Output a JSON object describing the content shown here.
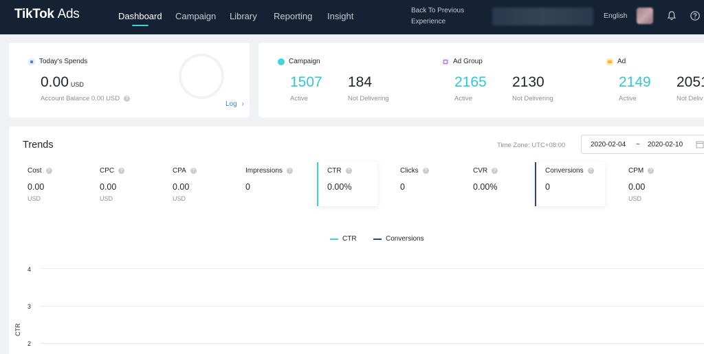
{
  "app": {
    "logo_main": "TikTok",
    "logo_sub": "Ads"
  },
  "nav": {
    "items": [
      {
        "label": "Dashboard",
        "active": true
      },
      {
        "label": "Campaign",
        "active": false
      },
      {
        "label": "Library",
        "active": false
      },
      {
        "label": "Reporting",
        "active": false
      },
      {
        "label": "Insight",
        "active": false
      }
    ],
    "back_line1": "Back To Previous",
    "back_line2": "Experience",
    "language": "English",
    "icons": [
      "bell-icon",
      "help-icon"
    ]
  },
  "spends": {
    "title": "Today's Spends",
    "amount": "0.00",
    "currency": "USD",
    "balance": "Account Balance 0.00 USD",
    "log_label": "Log"
  },
  "stats": {
    "campaign": {
      "title": "Campaign",
      "active": "1507",
      "active_label": "Active",
      "not_delivering": "184",
      "not_delivering_label": "Not Delivering"
    },
    "ad_group": {
      "title": "Ad Group",
      "active": "2165",
      "active_label": "Active",
      "not_delivering": "2130",
      "not_delivering_label": "Not Delivering"
    },
    "ad": {
      "title": "Ad",
      "active": "2149",
      "active_label": "Active",
      "not_delivering": "2051",
      "not_delivering_label": "Not Deliv"
    }
  },
  "trends": {
    "title": "Trends",
    "timezone": "Time Zone: UTC+08:00",
    "date_start": "2020-02-04",
    "date_sep": "~",
    "date_end": "2020-02-10",
    "metrics": [
      {
        "label": "Cost",
        "value": "0.00",
        "unit": "USD"
      },
      {
        "label": "CPC",
        "value": "0.00",
        "unit": "USD"
      },
      {
        "label": "CPA",
        "value": "0.00",
        "unit": "USD"
      },
      {
        "label": "Impressions",
        "value": "0",
        "unit": ""
      },
      {
        "label": "CTR",
        "value": "0.00%",
        "unit": ""
      },
      {
        "label": "Clicks",
        "value": "0",
        "unit": ""
      },
      {
        "label": "CVR",
        "value": "0.00%",
        "unit": ""
      },
      {
        "label": "Conversions",
        "value": "0",
        "unit": ""
      },
      {
        "label": "CPM",
        "value": "0.00",
        "unit": "USD"
      }
    ],
    "legend": [
      "CTR",
      "Conversions"
    ],
    "yaxis_label": "CTR",
    "yticks": [
      "4",
      "3",
      "2"
    ]
  },
  "colors": {
    "nav_bg": "#152233",
    "accent_cyan": "#3ed4dd",
    "conversions_navy": "#2d4775",
    "link_blue": "#3a86d8"
  }
}
